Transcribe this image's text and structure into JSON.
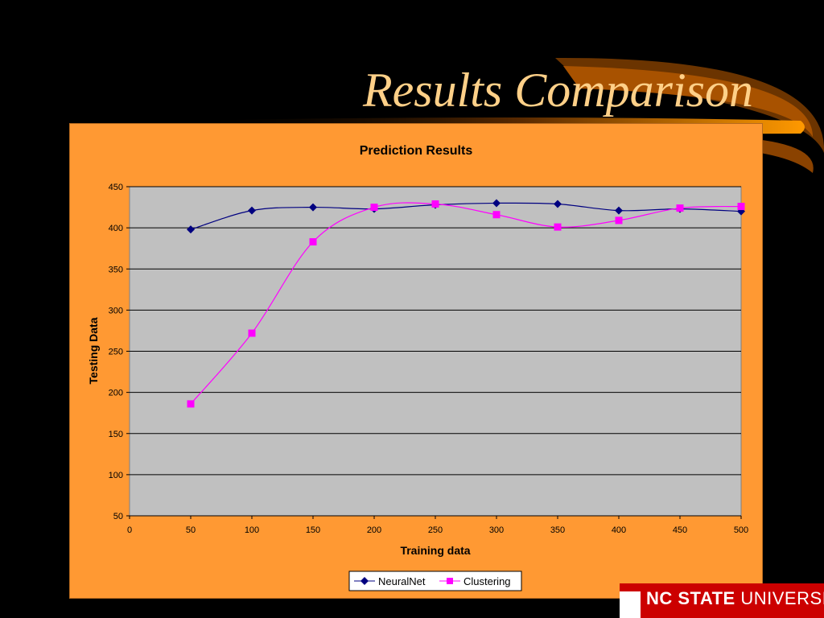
{
  "slide": {
    "title": "Results Comparison",
    "logo_bold": "NC STATE",
    "logo_rest": " UNIVERSITY"
  },
  "colors": {
    "background": "#000000",
    "chart_area": "#FF9933",
    "plot_area": "#C0C0C0",
    "title_text": "#FFD088",
    "neuralnet": "#000080",
    "clustering": "#FF00FF",
    "logo_red": "#CC0000"
  },
  "chart_data": {
    "type": "line",
    "title": "Prediction Results",
    "xlabel": "Training data",
    "ylabel": "Testing Data",
    "xlim": [
      0,
      500
    ],
    "ylim": [
      50,
      450
    ],
    "xticks": [
      0,
      50,
      100,
      150,
      200,
      250,
      300,
      350,
      400,
      450,
      500
    ],
    "yticks": [
      50,
      100,
      150,
      200,
      250,
      300,
      350,
      400,
      450
    ],
    "grid": "horizontal",
    "smooth": true,
    "legend_position": "bottom",
    "x": [
      50,
      100,
      150,
      200,
      250,
      300,
      350,
      400,
      450,
      500
    ],
    "series": [
      {
        "name": "NeuralNet",
        "marker": "diamond",
        "color": "#000080",
        "values": [
          398,
          421,
          425,
          423,
          428,
          430,
          429,
          421,
          423,
          420
        ]
      },
      {
        "name": "Clustering",
        "marker": "square",
        "color": "#FF00FF",
        "values": [
          186,
          272,
          383,
          425,
          429,
          416,
          401,
          409,
          424,
          426
        ]
      }
    ]
  }
}
